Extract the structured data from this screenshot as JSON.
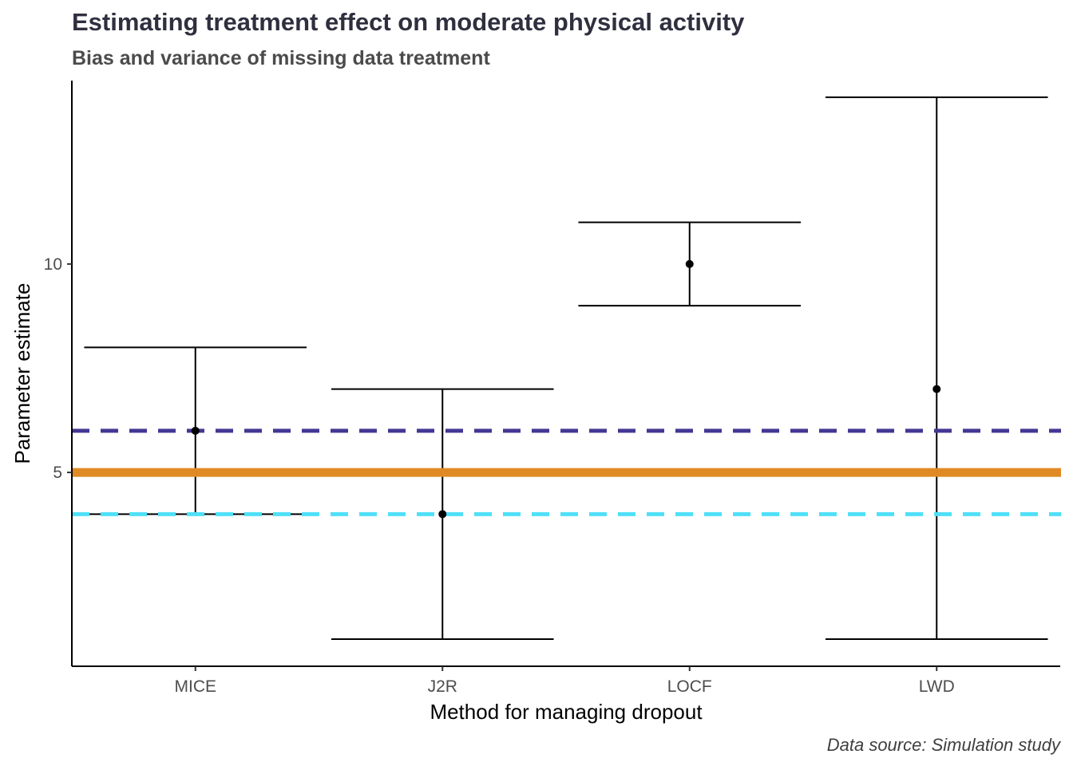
{
  "chart_data": {
    "type": "errorbar",
    "title": "Estimating treatment effect on moderate physical activity",
    "subtitle": "Bias and variance of missing data treatment",
    "xlabel": "Method for managing dropout",
    "ylabel": "Parameter estimate",
    "caption": "Data source: Simulation study",
    "categories": [
      "MICE",
      "J2R",
      "LOCF",
      "LWD"
    ],
    "estimates": [
      6,
      4,
      10,
      7
    ],
    "lower": [
      4,
      1,
      9,
      1
    ],
    "upper": [
      8,
      7,
      11,
      14
    ],
    "ylim": [
      0.35,
      14.4
    ],
    "yticks": [
      5,
      10
    ],
    "ytick_labels": [
      "5",
      "10"
    ],
    "reference_lines": [
      {
        "value": 5,
        "color": "#e08a25",
        "style": "solid"
      },
      {
        "value": 6,
        "color": "#433893",
        "style": "dashed"
      },
      {
        "value": 4,
        "color": "#4fe0f8",
        "style": "dashed"
      }
    ],
    "grid": false,
    "legend": "none"
  }
}
